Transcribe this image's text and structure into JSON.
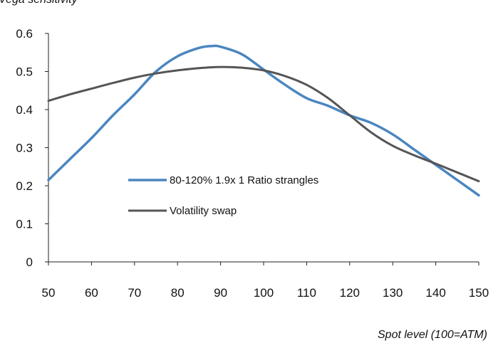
{
  "chart_data": {
    "type": "line",
    "ylabel": "Vega sensitivity",
    "xlabel": "Spot level (100=ATM)",
    "xlim": [
      50,
      150
    ],
    "ylim": [
      0,
      0.6
    ],
    "xticks": [
      50,
      60,
      70,
      80,
      90,
      100,
      110,
      120,
      130,
      140,
      150
    ],
    "yticks": [
      0,
      0.1,
      0.2,
      0.3,
      0.4,
      0.5,
      0.6
    ],
    "ytick_labels": [
      "0",
      "0.1",
      "0.2",
      "0.3",
      "0.4",
      "0.5",
      "0.6"
    ],
    "grid": false,
    "legend_position": "center-left",
    "series": [
      {
        "name": "80-120% 1.9x 1 Ratio strangles",
        "color": "#4a86c0",
        "x": [
          50,
          55,
          60,
          65,
          70,
          75,
          80,
          85,
          88,
          90,
          95,
          100,
          105,
          110,
          115,
          120,
          125,
          130,
          135,
          140,
          145,
          150
        ],
        "y": [
          0.215,
          0.27,
          0.325,
          0.385,
          0.44,
          0.5,
          0.54,
          0.562,
          0.567,
          0.565,
          0.545,
          0.505,
          0.465,
          0.43,
          0.41,
          0.385,
          0.365,
          0.335,
          0.295,
          0.255,
          0.215,
          0.175
        ]
      },
      {
        "name": "Volatility swap",
        "color": "#555555",
        "x": [
          50,
          55,
          60,
          65,
          70,
          75,
          80,
          85,
          90,
          95,
          100,
          105,
          110,
          115,
          120,
          125,
          130,
          135,
          140,
          145,
          150
        ],
        "y": [
          0.423,
          0.44,
          0.455,
          0.47,
          0.484,
          0.495,
          0.503,
          0.509,
          0.512,
          0.51,
          0.503,
          0.488,
          0.465,
          0.43,
          0.385,
          0.34,
          0.305,
          0.28,
          0.258,
          0.235,
          0.212
        ]
      }
    ]
  }
}
